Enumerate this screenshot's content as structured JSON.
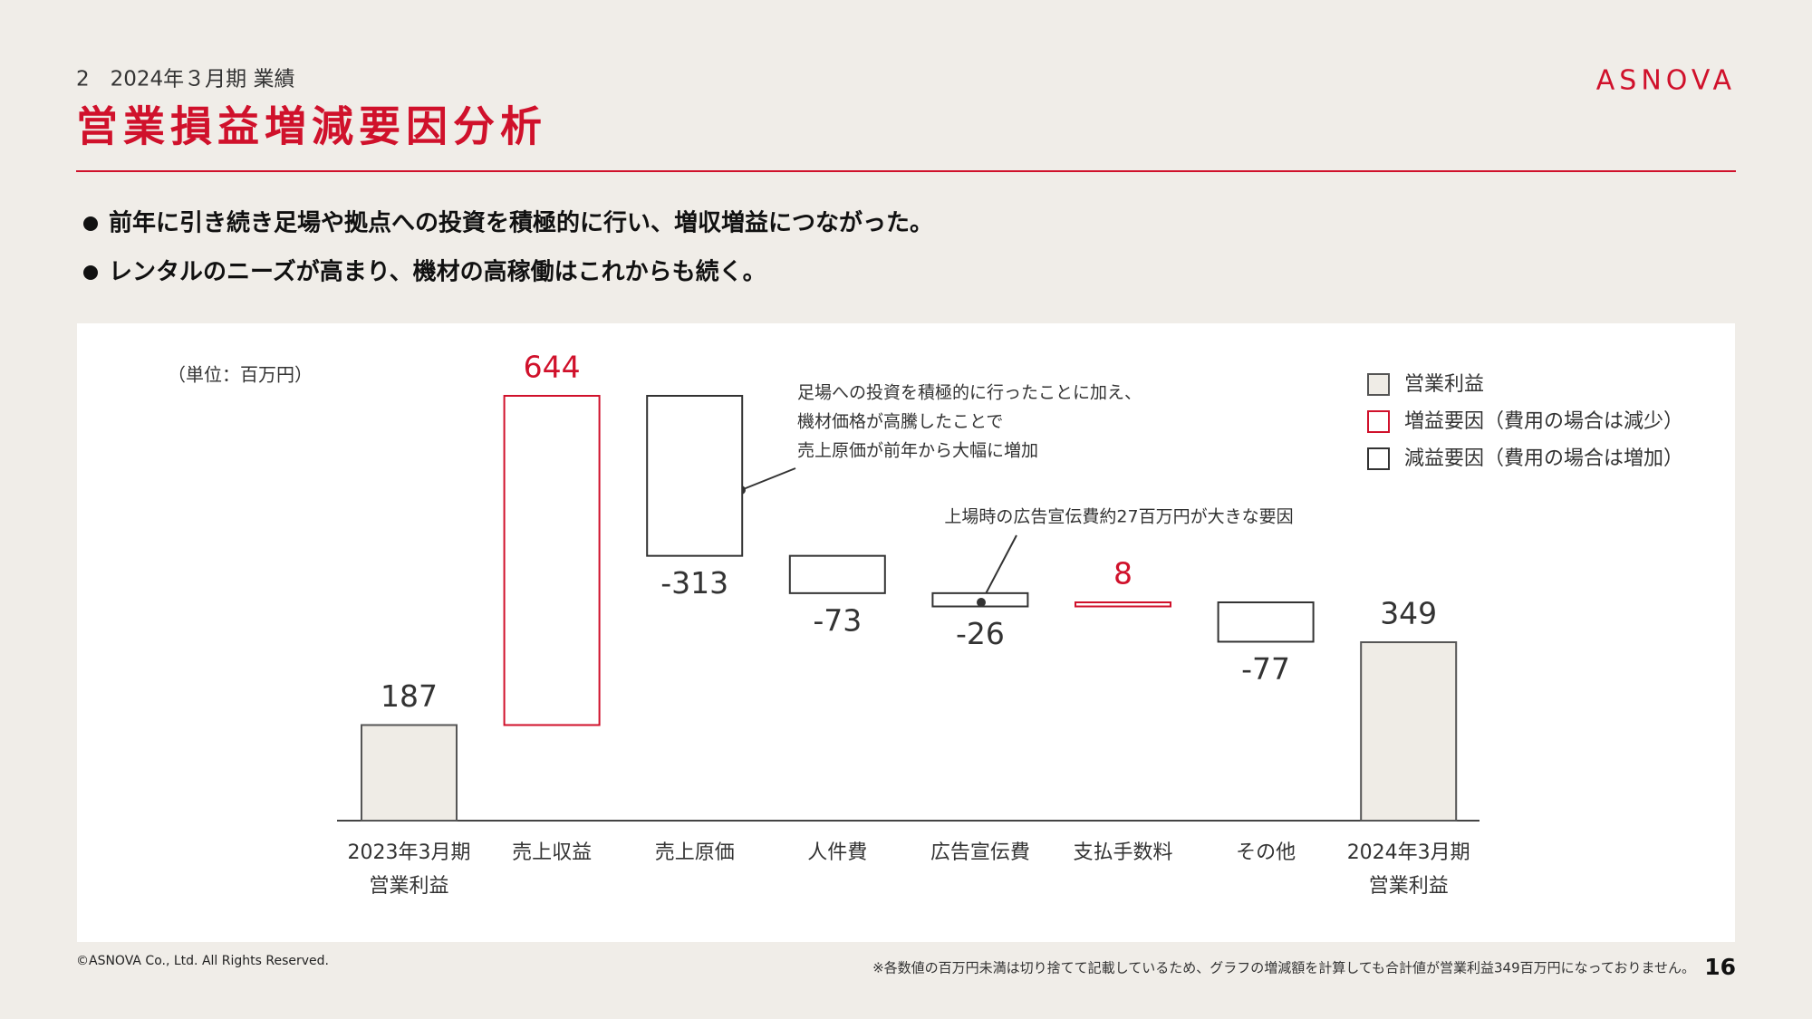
{
  "header": {
    "section": "2　2024年３月期 業績",
    "title": "営業損益増減要因分析",
    "logo": "ASNOVA"
  },
  "bullets": [
    "前年に引き続き足場や拠点への投資を積極的に行い、増収増益につながった。",
    "レンタルのニーズが高まり、機材の高稼働はこれからも続く。"
  ],
  "chart_data": {
    "type": "waterfall",
    "unit_label": "（単位：百万円）",
    "categories": [
      [
        "2023年3月期",
        "営業利益"
      ],
      [
        "売上収益"
      ],
      [
        "売上原価"
      ],
      [
        "人件費"
      ],
      [
        "広告宣伝費"
      ],
      [
        "支払手数料"
      ],
      [
        "その他"
      ],
      [
        "2024年3月期",
        "営業利益"
      ]
    ],
    "values": [
      187,
      644,
      -313,
      -73,
      -26,
      8,
      -77,
      349
    ],
    "legend": [
      {
        "name": "営業利益",
        "fill": "#efece6",
        "stroke": "#555555"
      },
      {
        "name": "増益要因（費用の場合は減少）",
        "fill": "#ffffff",
        "stroke": "#d0112b"
      },
      {
        "name": "減益要因（費用の場合は増加）",
        "fill": "#ffffff",
        "stroke": "#333333"
      }
    ],
    "annotations": [
      [
        "足場への投資を積極的に行ったことに加え、",
        "機材価格が高騰したことで",
        "売上原価が前年から大幅に増加"
      ],
      [
        "上場時の広告宣伝費約27百万円が大きな要因"
      ]
    ]
  },
  "footer": {
    "copyright": "©ASNOVA Co., Ltd. All Rights Reserved.",
    "note": "※各数値の百万円未満は切り捨てて記載しているため、グラフの増減額を計算しても合計値が営業利益349百万円になっておりません。",
    "page": "16"
  }
}
